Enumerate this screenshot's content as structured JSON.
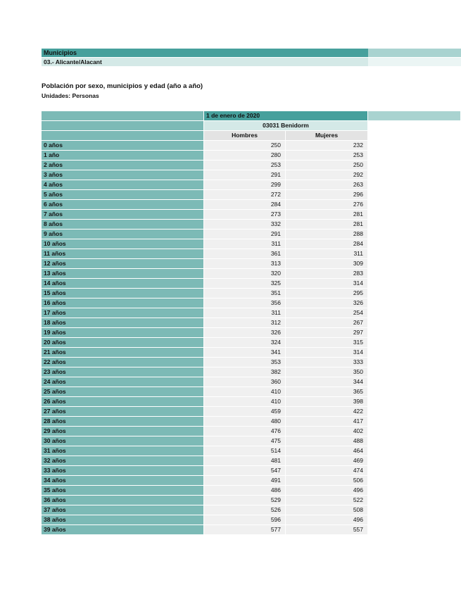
{
  "header": {
    "section_label": "Municipios",
    "province_label": "03.- Alicante/Alacant"
  },
  "title": "Población por sexo, municipios y edad (año a año)",
  "units": "Unidades: Personas",
  "colors": {
    "header_teal": "#46a09c",
    "row_label_teal": "#7cbab6",
    "light_teal": "#d4e9e7",
    "extension_teal": "#a9d3d0",
    "column_header_gray": "#e3e3e3",
    "data_cell_gray": "#f0f0f0"
  },
  "table": {
    "date_header": "1 de enero de 2020",
    "municipality_header": "03031 Benidorm",
    "columns": [
      "Hombres",
      "Mujeres"
    ],
    "rows": [
      {
        "label": "0 años",
        "values": [
          250,
          232
        ]
      },
      {
        "label": "1 año",
        "values": [
          280,
          253
        ]
      },
      {
        "label": "2 años",
        "values": [
          253,
          250
        ]
      },
      {
        "label": "3 años",
        "values": [
          291,
          292
        ]
      },
      {
        "label": "4 años",
        "values": [
          299,
          263
        ]
      },
      {
        "label": "5 años",
        "values": [
          272,
          296
        ]
      },
      {
        "label": "6 años",
        "values": [
          284,
          276
        ]
      },
      {
        "label": "7 años",
        "values": [
          273,
          281
        ]
      },
      {
        "label": "8 años",
        "values": [
          332,
          281
        ]
      },
      {
        "label": "9 años",
        "values": [
          291,
          288
        ]
      },
      {
        "label": "10 años",
        "values": [
          311,
          284
        ]
      },
      {
        "label": "11 años",
        "values": [
          361,
          311
        ]
      },
      {
        "label": "12 años",
        "values": [
          313,
          309
        ]
      },
      {
        "label": "13 años",
        "values": [
          320,
          283
        ]
      },
      {
        "label": "14 años",
        "values": [
          325,
          314
        ]
      },
      {
        "label": "15 años",
        "values": [
          351,
          295
        ]
      },
      {
        "label": "16 años",
        "values": [
          356,
          326
        ]
      },
      {
        "label": "17 años",
        "values": [
          311,
          254
        ]
      },
      {
        "label": "18 años",
        "values": [
          312,
          267
        ]
      },
      {
        "label": "19 años",
        "values": [
          326,
          297
        ]
      },
      {
        "label": "20 años",
        "values": [
          324,
          315
        ]
      },
      {
        "label": "21 años",
        "values": [
          341,
          314
        ]
      },
      {
        "label": "22 años",
        "values": [
          353,
          333
        ]
      },
      {
        "label": "23 años",
        "values": [
          382,
          350
        ]
      },
      {
        "label": "24 años",
        "values": [
          360,
          344
        ]
      },
      {
        "label": "25 años",
        "values": [
          410,
          365
        ]
      },
      {
        "label": "26 años",
        "values": [
          410,
          398
        ]
      },
      {
        "label": "27 años",
        "values": [
          459,
          422
        ]
      },
      {
        "label": "28 años",
        "values": [
          480,
          417
        ]
      },
      {
        "label": "29 años",
        "values": [
          476,
          402
        ]
      },
      {
        "label": "30 años",
        "values": [
          475,
          488
        ]
      },
      {
        "label": "31 años",
        "values": [
          514,
          464
        ]
      },
      {
        "label": "32 años",
        "values": [
          481,
          469
        ]
      },
      {
        "label": "33 años",
        "values": [
          547,
          474
        ]
      },
      {
        "label": "34 años",
        "values": [
          491,
          506
        ]
      },
      {
        "label": "35 años",
        "values": [
          486,
          496
        ]
      },
      {
        "label": "36 años",
        "values": [
          529,
          522
        ]
      },
      {
        "label": "37 años",
        "values": [
          526,
          508
        ]
      },
      {
        "label": "38 años",
        "values": [
          596,
          496
        ]
      },
      {
        "label": "39 años",
        "values": [
          577,
          557
        ]
      }
    ]
  }
}
